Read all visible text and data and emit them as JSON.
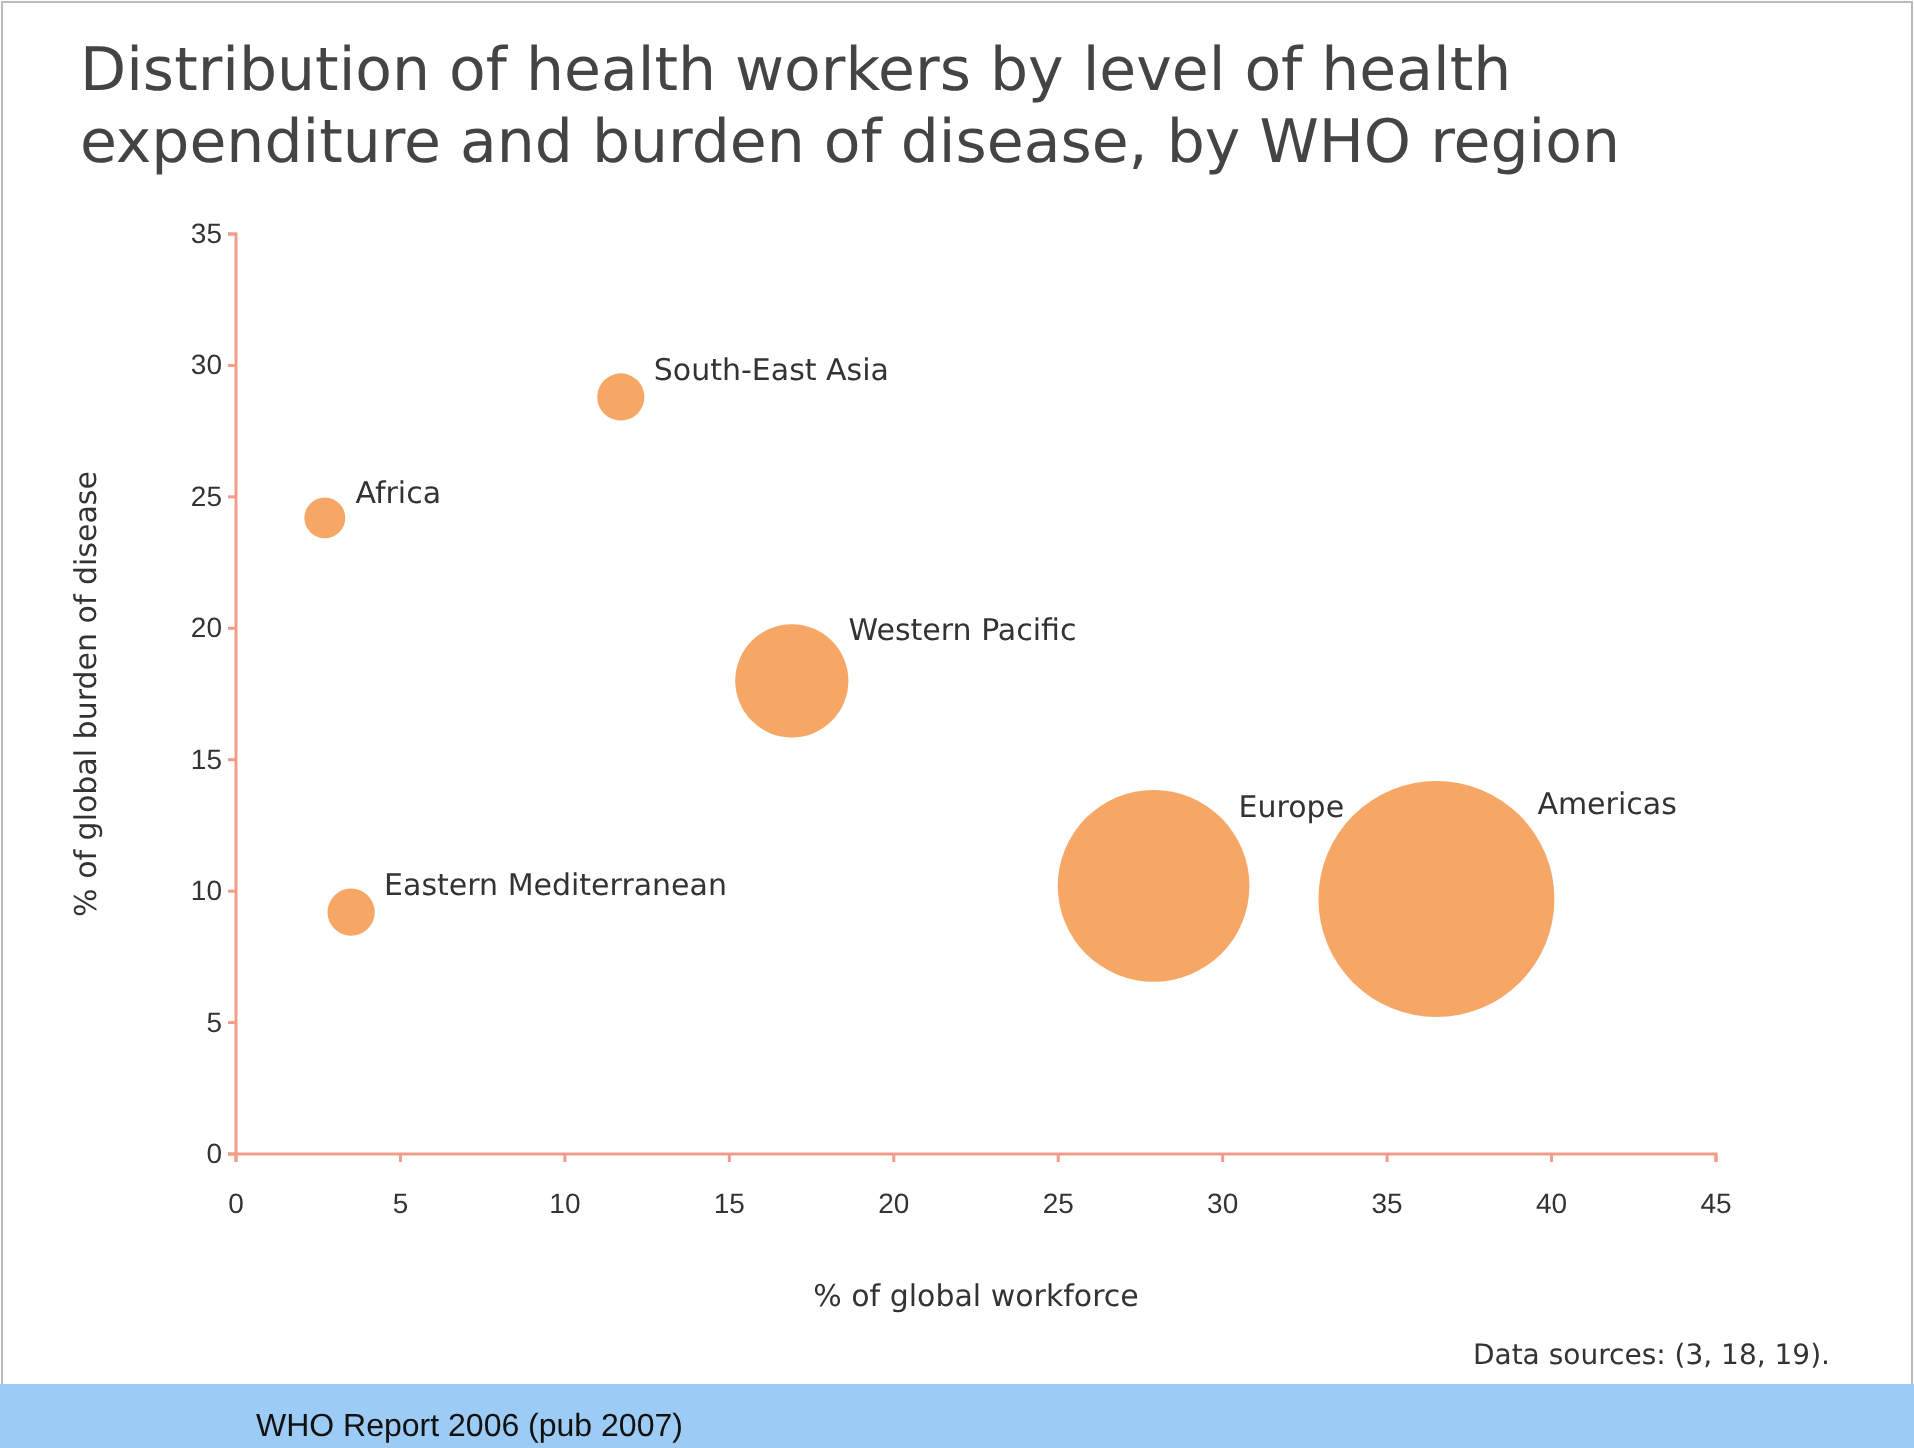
{
  "chart_data": {
    "type": "bubble",
    "title": "Distribution of health workers by level of health expenditure and burden of disease, by WHO region",
    "xlabel": "% of global workforce",
    "ylabel": "% of global burden of disease",
    "series": [
      {
        "name": "Africa",
        "color": "#f59d55",
        "x": [
          2.7
        ],
        "values": [
          24.2
        ],
        "sizes": [
          0.03
        ]
      },
      {
        "name": "South-East Asia",
        "color": "#f59d55",
        "x": [
          11.7
        ],
        "values": [
          28.8
        ],
        "sizes": [
          0.04
        ]
      },
      {
        "name": "Western Pacific",
        "color": "#f59d55",
        "x": [
          16.9
        ],
        "values": [
          18.0
        ],
        "sizes": [
          0.23
        ]
      },
      {
        "name": "Eastern Mediterranean",
        "color": "#f59d55",
        "x": [
          3.5
        ],
        "values": [
          9.2
        ],
        "sizes": [
          0.04
        ]
      },
      {
        "name": "Europe",
        "color": "#f59d55",
        "x": [
          27.9
        ],
        "values": [
          10.2
        ],
        "sizes": [
          0.66
        ]
      },
      {
        "name": "Americas",
        "color": "#f59d55",
        "x": [
          36.5
        ],
        "values": [
          9.7
        ],
        "sizes": [
          1
        ]
      }
    ],
    "xlim": [
      0,
      45
    ],
    "xticks": [
      0,
      5,
      10,
      15,
      20,
      25,
      30,
      35,
      40,
      45
    ],
    "ylim": [
      0,
      35
    ],
    "yticks": [
      0,
      5,
      10,
      15,
      20,
      25,
      30,
      35
    ],
    "grid": false,
    "legend": false,
    "annotations": [
      "Data sources: (3, 18, 19).",
      "WHO Report 2006 (pub 2007)"
    ]
  }
}
